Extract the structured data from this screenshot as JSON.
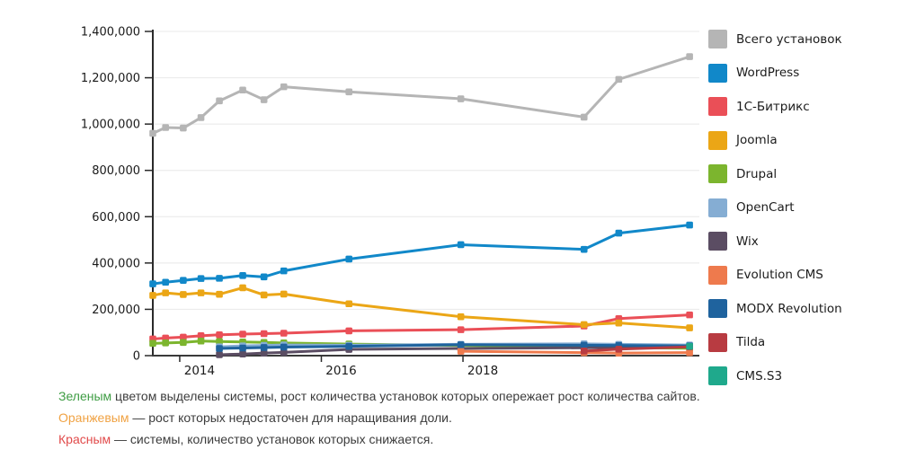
{
  "chart_data": {
    "type": "line",
    "title": "",
    "xlabel": "",
    "ylabel": "",
    "x": [
      2013.62,
      2013.8,
      2014.05,
      2014.3,
      2014.56,
      2014.89,
      2015.19,
      2015.47,
      2016.39,
      2017.97,
      2019.71,
      2020.2,
      2021.2
    ],
    "xlim": [
      2013.62,
      2021.3
    ],
    "ylim": [
      0,
      1400000
    ],
    "grid": true,
    "legend_position": "right",
    "y_ticks": [
      {
        "value": 0,
        "label": "0"
      },
      {
        "value": 200000,
        "label": "200,000"
      },
      {
        "value": 400000,
        "label": "400,000"
      },
      {
        "value": 600000,
        "label": "600,000"
      },
      {
        "value": 800000,
        "label": "800,000"
      },
      {
        "value": 1000000,
        "label": "1,000,000"
      },
      {
        "value": 1200000,
        "label": "1,200,000"
      },
      {
        "value": 1400000,
        "label": "1,400,000"
      }
    ],
    "x_ticks": [
      {
        "value": 2014,
        "label": "2014"
      },
      {
        "value": 2016,
        "label": "2016"
      },
      {
        "value": 2018,
        "label": "2018"
      }
    ],
    "series": [
      {
        "name": "Всего установок",
        "color": "#b5b5b5",
        "values": [
          960000,
          985000,
          983000,
          1028000,
          1100000,
          1147000,
          1105000,
          1161000,
          1139000,
          1109000,
          1030000,
          1193000,
          1291000
        ]
      },
      {
        "name": "WordPress",
        "color": "#1188c9",
        "values": [
          310000,
          317000,
          325000,
          333000,
          334000,
          346000,
          340000,
          366000,
          417000,
          479000,
          459000,
          529000,
          564000
        ]
      },
      {
        "name": "1С-Битрикс",
        "color": "#ea4f57",
        "values": [
          72000,
          76000,
          80000,
          86000,
          90000,
          93000,
          95000,
          97000,
          107000,
          112000,
          128000,
          160000,
          176000
        ]
      },
      {
        "name": "Joomla",
        "color": "#eba616",
        "values": [
          260000,
          271000,
          264000,
          271000,
          265000,
          293000,
          262000,
          266000,
          224000,
          168000,
          134000,
          141000,
          120000
        ]
      },
      {
        "name": "Drupal",
        "color": "#7cb52e",
        "values": [
          53000,
          55000,
          57000,
          63000,
          61000,
          59000,
          57000,
          55000,
          50000,
          44000,
          37000,
          35000,
          32000
        ]
      },
      {
        "name": "OpenCart",
        "color": "#85add3",
        "values": [
          null,
          null,
          null,
          null,
          38000,
          42000,
          44000,
          46000,
          45000,
          49000,
          51000,
          49000,
          46000
        ]
      },
      {
        "name": "Wix",
        "color": "#5b4d63",
        "values": [
          null,
          null,
          null,
          null,
          4000,
          7000,
          11000,
          14000,
          27000,
          31000,
          34000,
          36000,
          38000
        ]
      },
      {
        "name": "Evolution CMS",
        "color": "#ee7a4d",
        "values": [
          null,
          null,
          null,
          null,
          null,
          null,
          null,
          null,
          null,
          19000,
          13000,
          11000,
          13000
        ]
      },
      {
        "name": "MODX Revolution",
        "color": "#1f639e",
        "values": [
          null,
          null,
          null,
          null,
          31000,
          33000,
          35000,
          37000,
          40000,
          47000,
          45000,
          44000,
          42000
        ]
      },
      {
        "name": "Tilda",
        "color": "#b83b41",
        "values": [
          null,
          null,
          null,
          null,
          null,
          null,
          null,
          null,
          null,
          null,
          20000,
          28000,
          38000
        ]
      },
      {
        "name": "CMS.S3",
        "color": "#1fa98c",
        "values": [
          null,
          null,
          null,
          null,
          null,
          null,
          null,
          null,
          null,
          null,
          null,
          null,
          40000
        ]
      }
    ]
  },
  "notes": [
    {
      "lead": "Зеленым",
      "lead_color": "#3f9d44",
      "rest": " цветом выделены системы, рост количества установок которых опережает рост количества сайтов."
    },
    {
      "lead": "Оранжевым",
      "lead_color": "#f0a243",
      "rest": " — рост которых недостаточен для наращивания доли."
    },
    {
      "lead": "Красным",
      "lead_color": "#e14b4b",
      "rest": " — системы, количество установок которых снижается."
    }
  ]
}
